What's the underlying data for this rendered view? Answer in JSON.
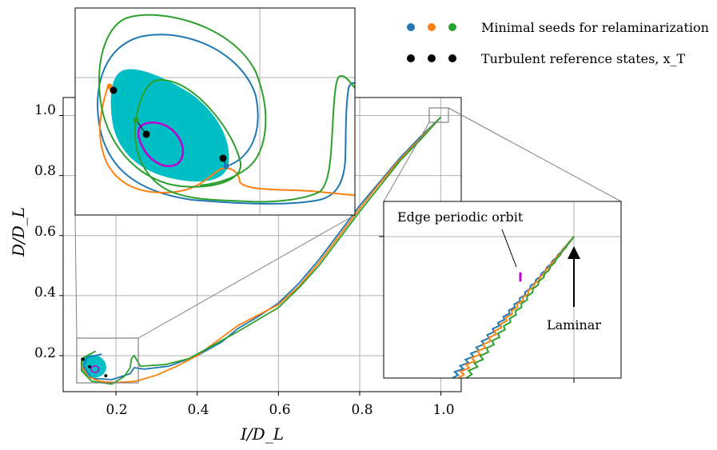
{
  "chart_data": {
    "type": "line",
    "xlabel": "I/D_L",
    "ylabel": "D/D_L",
    "xlim": [
      0.07,
      1.05
    ],
    "ylim": [
      0.08,
      1.06
    ],
    "x_ticks": [
      "0.2",
      "0.4",
      "0.6",
      "0.8",
      "1.0"
    ],
    "y_ticks": [
      "0.2",
      "0.4",
      "0.6",
      "0.8",
      "1.0"
    ],
    "grid": true,
    "colors": {
      "blue": "#1f77b4",
      "orange": "#ff7f0e",
      "green": "#2ca02c",
      "black": "#000000",
      "cyan": "#00bfc4",
      "magenta": "#bf00d0"
    },
    "legend": [
      {
        "label": "Minimal seeds for relaminarization",
        "colors": [
          "#1f77b4",
          "#ff7f0e",
          "#2ca02c"
        ]
      },
      {
        "label": "Turbulent reference states, x_T",
        "colors": [
          "#000000",
          "#000000",
          "#000000"
        ]
      }
    ],
    "series": [
      {
        "name": "seed-blue",
        "color": "#1f77b4",
        "x": [
          0.165,
          0.13,
          0.12,
          0.14,
          0.19,
          0.235,
          0.245,
          0.27,
          0.33,
          0.4,
          0.46,
          0.5,
          0.55,
          0.6,
          0.65,
          0.7,
          0.75,
          0.8,
          0.85,
          0.9,
          0.95,
          1.0
        ],
        "y": [
          0.205,
          0.195,
          0.165,
          0.125,
          0.12,
          0.14,
          0.16,
          0.155,
          0.165,
          0.2,
          0.245,
          0.29,
          0.33,
          0.375,
          0.44,
          0.52,
          0.61,
          0.7,
          0.78,
          0.86,
          0.93,
          0.995
        ]
      },
      {
        "name": "seed-orange",
        "color": "#ff7f0e",
        "x": [
          0.115,
          0.118,
          0.13,
          0.16,
          0.2,
          0.25,
          0.3,
          0.35,
          0.4,
          0.45,
          0.5,
          0.55,
          0.6,
          0.65,
          0.7,
          0.75,
          0.8,
          0.85,
          0.9,
          0.95,
          1.0
        ],
        "y": [
          0.19,
          0.16,
          0.13,
          0.115,
          0.11,
          0.115,
          0.135,
          0.165,
          0.2,
          0.25,
          0.3,
          0.335,
          0.37,
          0.43,
          0.51,
          0.6,
          0.69,
          0.775,
          0.855,
          0.925,
          0.995
        ]
      },
      {
        "name": "seed-green",
        "color": "#2ca02c",
        "x": [
          0.15,
          0.115,
          0.115,
          0.14,
          0.19,
          0.22,
          0.235,
          0.238,
          0.245,
          0.26,
          0.32,
          0.38,
          0.44,
          0.5,
          0.55,
          0.6,
          0.65,
          0.7,
          0.75,
          0.8,
          0.85,
          0.9,
          0.95,
          1.0
        ],
        "y": [
          0.215,
          0.19,
          0.15,
          0.115,
          0.105,
          0.13,
          0.16,
          0.19,
          0.2,
          0.165,
          0.17,
          0.19,
          0.235,
          0.28,
          0.32,
          0.36,
          0.425,
          0.5,
          0.59,
          0.68,
          0.765,
          0.85,
          0.92,
          0.995
        ]
      }
    ],
    "reference_points": {
      "x": [
        0.119,
        0.135,
        0.175
      ],
      "y": [
        0.188,
        0.163,
        0.133
      ]
    },
    "inset_top": {
      "xlim": [
        0.095,
        0.25
      ],
      "ylim": [
        0.1,
        0.25
      ]
    },
    "inset_right": {
      "xlim": [
        0.955,
        1.0
      ],
      "ylim": [
        0.955,
        1.0
      ]
    },
    "annotations": {
      "edge_orbit": "Edge periodic orbit",
      "laminar": "Laminar"
    }
  }
}
